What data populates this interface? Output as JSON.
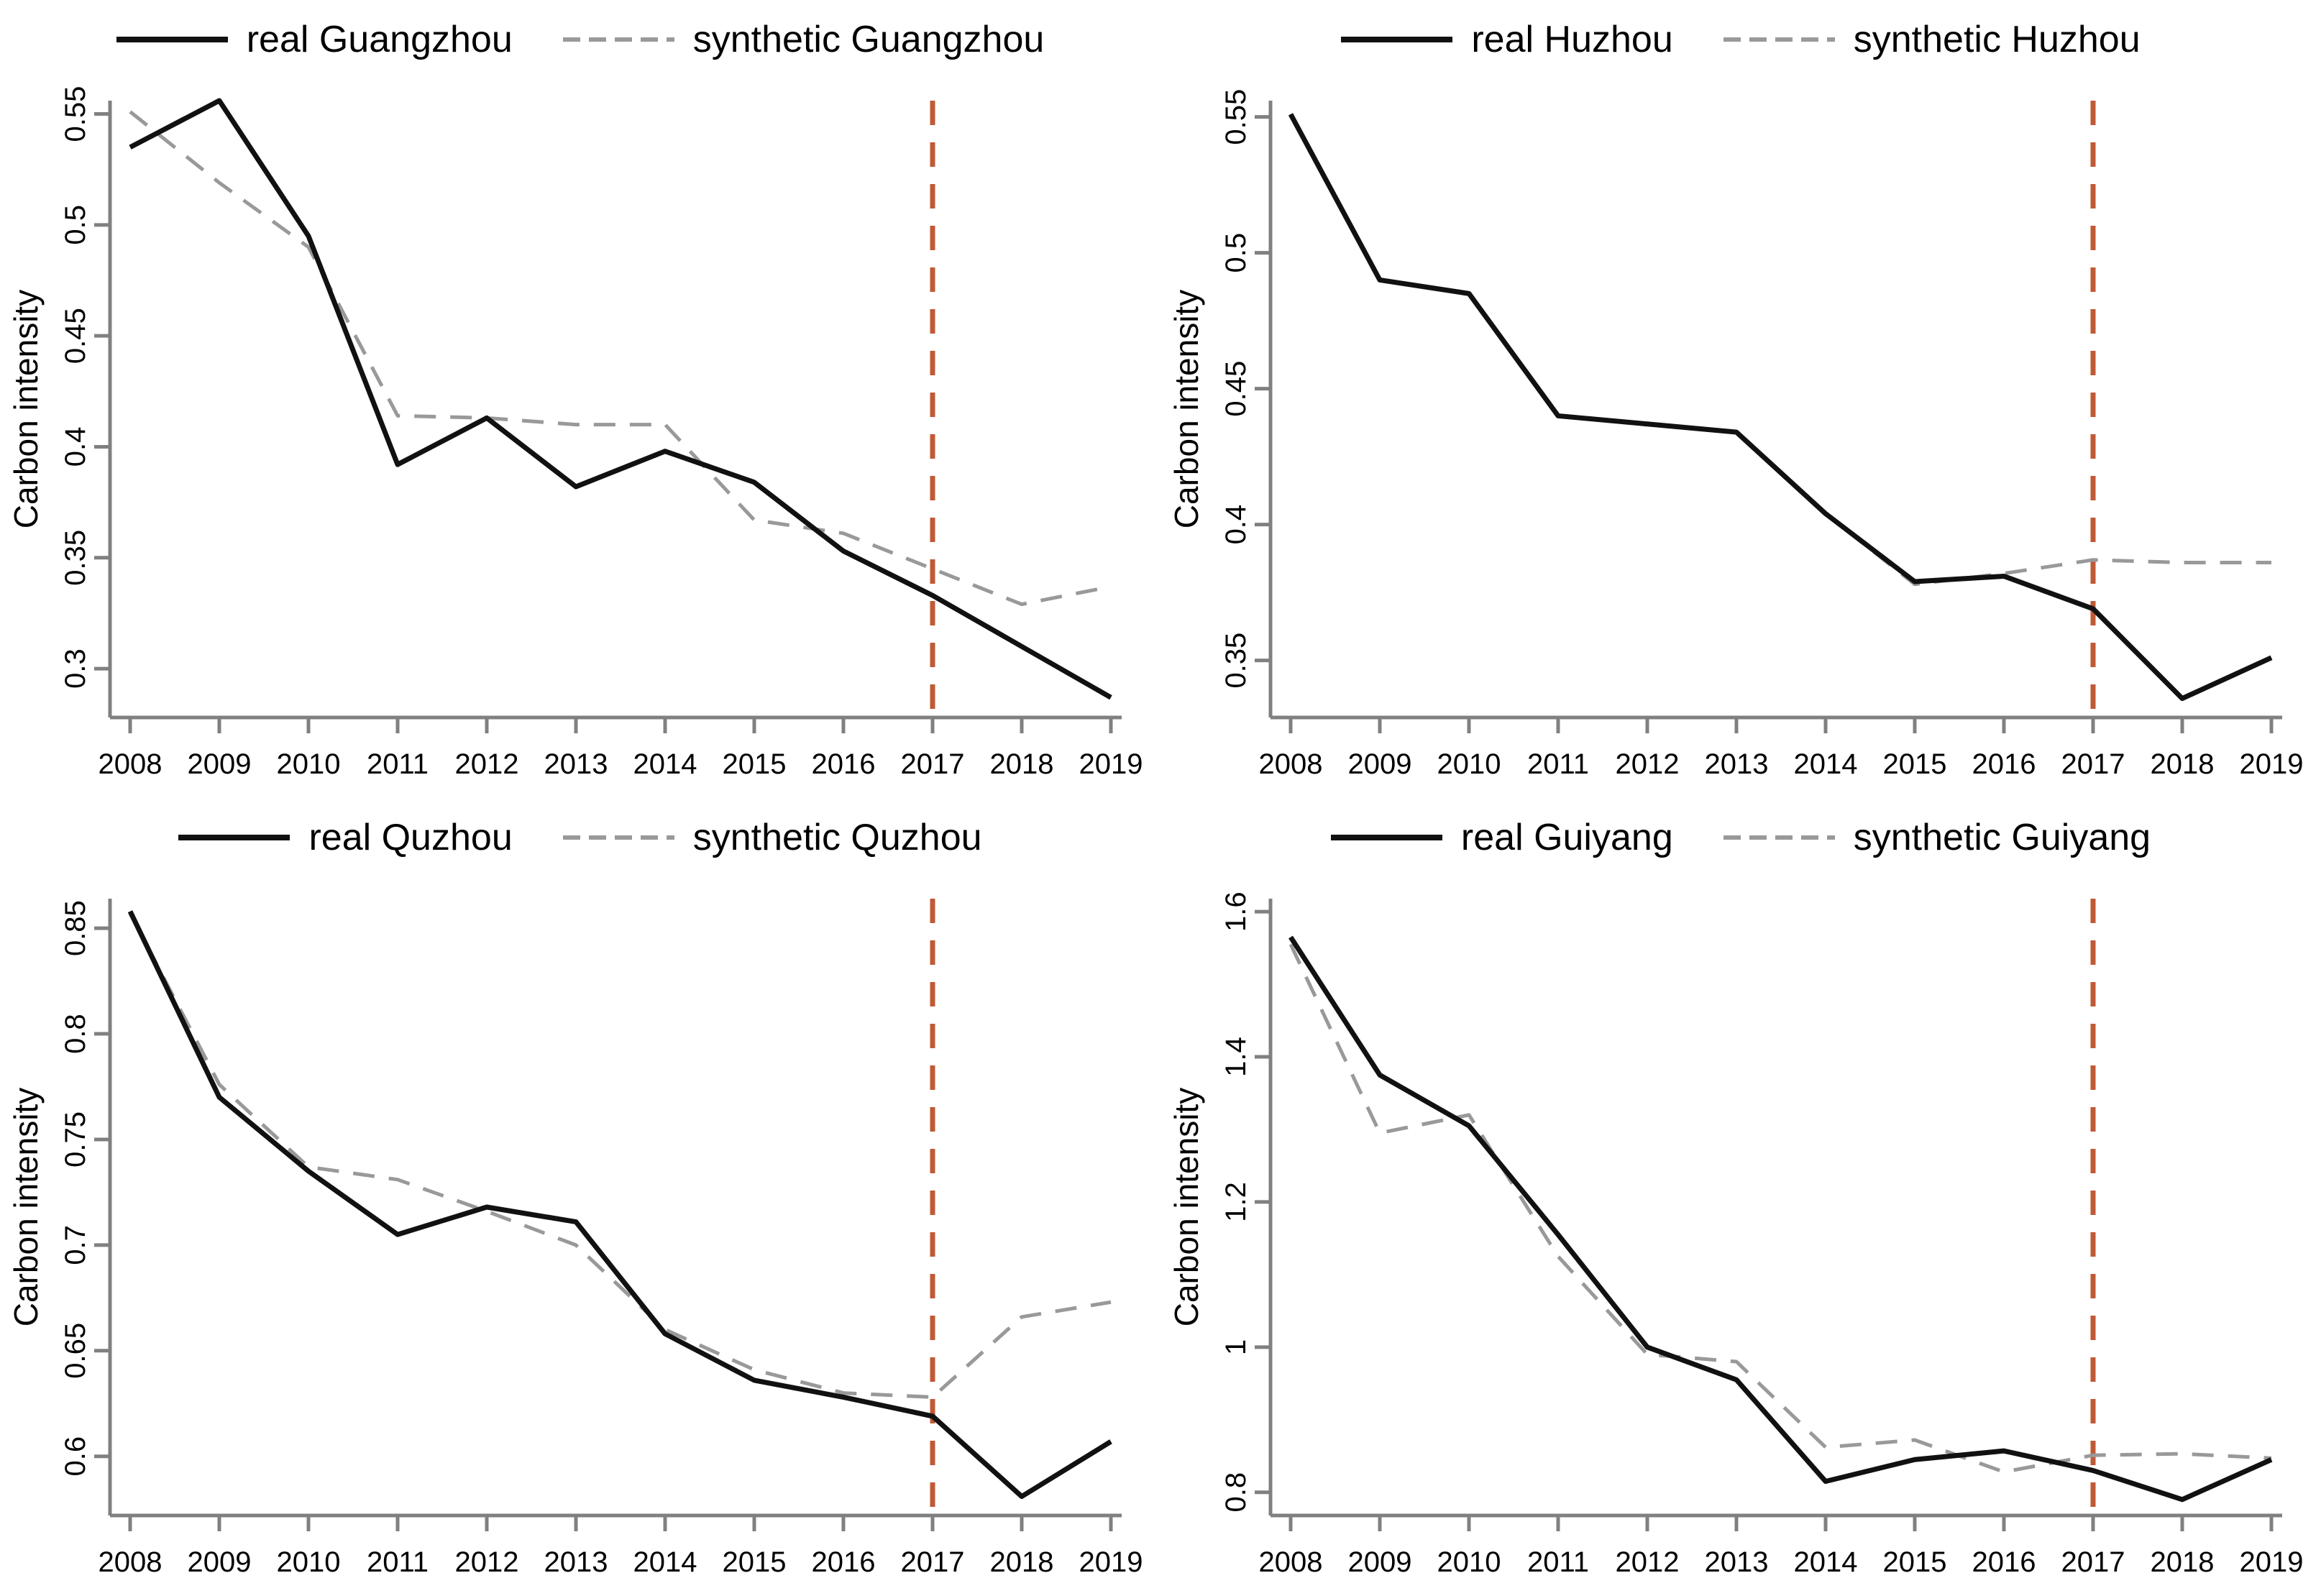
{
  "figure": {
    "ylabel": "Carbon intensity",
    "treatment_year": 2017
  },
  "style": {
    "real_color": "#111111",
    "synthetic_color": "#999999",
    "treatment_color": "#c05a36",
    "axis_color": "#808080",
    "text_color": "#000000",
    "background": "#ffffff"
  },
  "chart_data": [
    {
      "type": "line",
      "city": "Guangzhou",
      "ylabel": "Carbon intensity",
      "x": [
        2008,
        2009,
        2010,
        2011,
        2012,
        2013,
        2014,
        2015,
        2016,
        2017,
        2018,
        2019
      ],
      "xtick_labels": [
        "2008",
        "2009",
        "2010",
        "2011",
        "2012",
        "2013",
        "2014",
        "2015",
        "2016",
        "2017",
        "2018",
        "2019"
      ],
      "yticks": [
        0.3,
        0.35,
        0.4,
        0.45,
        0.5,
        0.55
      ],
      "ytick_labels": [
        "0.3",
        "0.35",
        "0.4",
        "0.45",
        "0.5",
        "0.55"
      ],
      "ylim": [
        0.278,
        0.556
      ],
      "treatment_x": 2017,
      "legend_position": "top",
      "series": [
        {
          "name": "real Guangzhou",
          "line_style": "solid",
          "values": [
            0.535,
            0.556,
            0.495,
            0.392,
            0.413,
            0.382,
            0.398,
            0.384,
            0.353,
            0.333,
            0.31,
            0.287
          ]
        },
        {
          "name": "synthetic Guangzhou",
          "line_style": "dashed",
          "values": [
            0.551,
            0.519,
            0.49,
            0.414,
            0.413,
            0.41,
            0.41,
            0.367,
            0.361,
            0.345,
            0.329,
            0.337
          ]
        }
      ]
    },
    {
      "type": "line",
      "city": "Huzhou",
      "ylabel": "Carbon intensity",
      "x": [
        2008,
        2009,
        2010,
        2011,
        2012,
        2013,
        2014,
        2015,
        2016,
        2017,
        2018,
        2019
      ],
      "xtick_labels": [
        "2008",
        "2009",
        "2010",
        "2011",
        "2012",
        "2013",
        "2014",
        "2015",
        "2016",
        "2017",
        "2018",
        "2019"
      ],
      "yticks": [
        0.35,
        0.4,
        0.45,
        0.5,
        0.55
      ],
      "ytick_labels": [
        "0.35",
        "0.4",
        "0.45",
        "0.5",
        "0.55"
      ],
      "ylim": [
        0.329,
        0.556
      ],
      "treatment_x": 2017,
      "legend_position": "top",
      "series": [
        {
          "name": "real Huzhou",
          "line_style": "solid",
          "values": [
            0.551,
            0.49,
            0.485,
            0.44,
            0.437,
            0.434,
            0.404,
            0.379,
            0.381,
            0.369,
            0.336,
            0.351
          ]
        },
        {
          "name": "synthetic Huzhou",
          "line_style": "dashed",
          "values": [
            0.551,
            0.49,
            0.485,
            0.44,
            0.437,
            0.434,
            0.404,
            0.378,
            0.382,
            0.387,
            0.386,
            0.386
          ]
        }
      ]
    },
    {
      "type": "line",
      "city": "Quzhou",
      "ylabel": "Carbon intensity",
      "x": [
        2008,
        2009,
        2010,
        2011,
        2012,
        2013,
        2014,
        2015,
        2016,
        2017,
        2018,
        2019
      ],
      "xtick_labels": [
        "2008",
        "2009",
        "2010",
        "2011",
        "2012",
        "2013",
        "2014",
        "2015",
        "2016",
        "2017",
        "2018",
        "2019"
      ],
      "yticks": [
        0.6,
        0.65,
        0.7,
        0.75,
        0.8,
        0.85
      ],
      "ytick_labels": [
        "0.6",
        "0.65",
        "0.7",
        "0.75",
        "0.8",
        "0.85"
      ],
      "ylim": [
        0.572,
        0.864
      ],
      "treatment_x": 2017,
      "legend_position": "top",
      "series": [
        {
          "name": "real Quzhou",
          "line_style": "solid",
          "values": [
            0.858,
            0.77,
            0.735,
            0.705,
            0.718,
            0.711,
            0.658,
            0.636,
            0.628,
            0.619,
            0.581,
            0.607
          ]
        },
        {
          "name": "synthetic Quzhou",
          "line_style": "dashed",
          "values": [
            0.857,
            0.776,
            0.737,
            0.731,
            0.716,
            0.7,
            0.66,
            0.641,
            0.63,
            0.628,
            0.666,
            0.673
          ]
        }
      ]
    },
    {
      "type": "line",
      "city": "Guiyang",
      "ylabel": "Carbon intensity",
      "x": [
        2008,
        2009,
        2010,
        2011,
        2012,
        2013,
        2014,
        2015,
        2016,
        2017,
        2018,
        2019
      ],
      "xtick_labels": [
        "2008",
        "2009",
        "2010",
        "2011",
        "2012",
        "2013",
        "2014",
        "2015",
        "2016",
        "2017",
        "2018",
        "2019"
      ],
      "yticks": [
        0.8,
        1.0,
        1.2,
        1.4,
        1.6
      ],
      "ytick_labels": [
        "0.8",
        "1",
        "1.2",
        "1.4",
        "1.6"
      ],
      "ylim": [
        0.768,
        1.618
      ],
      "treatment_x": 2017,
      "legend_position": "top",
      "series": [
        {
          "name": "real Guiyang",
          "line_style": "solid",
          "values": [
            1.565,
            1.375,
            1.305,
            1.155,
            1.0,
            0.955,
            0.815,
            0.845,
            0.857,
            0.83,
            0.79,
            0.845
          ]
        },
        {
          "name": "synthetic Guiyang",
          "line_style": "dashed",
          "values": [
            1.555,
            1.295,
            1.32,
            1.125,
            0.99,
            0.98,
            0.862,
            0.872,
            0.828,
            0.851,
            0.853,
            0.847
          ]
        }
      ]
    }
  ]
}
